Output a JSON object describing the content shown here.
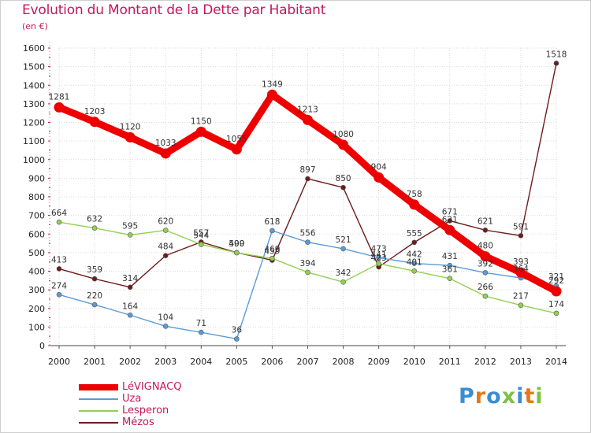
{
  "title": "Evolution du Montant de la Dette par Habitant",
  "unit_label": "(en €)",
  "logo": {
    "text": "Proxiti",
    "colors": [
      "#3a8ed0",
      "#e07a1c",
      "#3a8ed0",
      "#7cc243",
      "#3a8ed0",
      "#e07a1c",
      "#7cc243"
    ]
  },
  "chart_data": {
    "type": "line",
    "x": [
      "2000",
      "2001",
      "2002",
      "2003",
      "2004",
      "2005",
      "2006",
      "2007",
      "2008",
      "2009",
      "2010",
      "2011",
      "2012",
      "2013",
      "2014"
    ],
    "ylim": [
      0,
      1600
    ],
    "yticks": [
      0,
      100,
      200,
      300,
      400,
      500,
      600,
      700,
      800,
      900,
      1000,
      1100,
      1200,
      1300,
      1400,
      1500,
      1600
    ],
    "grid": true,
    "legend_position": "bottom-left",
    "series": [
      {
        "name": "LéVIGNACQ",
        "color": "#ee0000",
        "values": [
          1281,
          1203,
          1120,
          1033,
          1150,
          1055,
          1349,
          1213,
          1080,
          904,
          758,
          621,
          480,
          393,
          292
        ]
      },
      {
        "name": "Uza",
        "color": "#5b9bd5",
        "values": [
          274,
          220,
          164,
          104,
          71,
          36,
          618,
          556,
          521,
          473,
          442,
          431,
          392,
          364,
          321
        ]
      },
      {
        "name": "Lesperon",
        "color": "#92d050",
        "values": [
          664,
          632,
          595,
          620,
          544,
          499,
          469,
          394,
          342,
          441,
          401,
          361,
          266,
          217,
          174
        ]
      },
      {
        "name": "Mézos",
        "color": "#6b1c1c",
        "values": [
          413,
          359,
          314,
          484,
          557,
          500,
          459,
          897,
          850,
          423,
          555,
          671,
          621,
          591,
          1518
        ]
      }
    ]
  }
}
